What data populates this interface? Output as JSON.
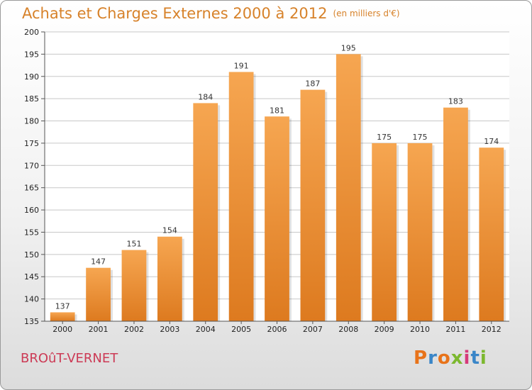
{
  "header": {
    "title": "Achats et Charges Externes 2000 à 2012",
    "subtitle": "(en milliers d'€)"
  },
  "footer": {
    "place": "BROûT-VERNET",
    "logo": "Proxiti",
    "logo_colors": [
      "#e8731a",
      "#3a86c8",
      "#e8731a",
      "#7cb82f",
      "#d63a7a",
      "#3a86c8",
      "#7cb82f"
    ]
  },
  "colors": {
    "bar_top": "#f6a651",
    "bar_bottom": "#dd7a1f",
    "grid": "#c8c8c8",
    "title": "#d7822a",
    "place": "#cc3a55"
  },
  "chart_data": {
    "type": "bar",
    "categories": [
      "2000",
      "2001",
      "2002",
      "2003",
      "2004",
      "2005",
      "2006",
      "2007",
      "2008",
      "2009",
      "2010",
      "2011",
      "2012"
    ],
    "values": [
      137,
      147,
      151,
      154,
      184,
      191,
      181,
      187,
      195,
      175,
      175,
      183,
      174
    ],
    "title": "Achats et Charges Externes 2000 à 2012",
    "subtitle": "(en milliers d'€)",
    "xlabel": "",
    "ylabel": "",
    "ylim": [
      135,
      200
    ],
    "yticks": [
      135,
      140,
      145,
      150,
      155,
      160,
      165,
      170,
      175,
      180,
      185,
      190,
      195,
      200
    ],
    "grid": true,
    "data_labels": true
  }
}
